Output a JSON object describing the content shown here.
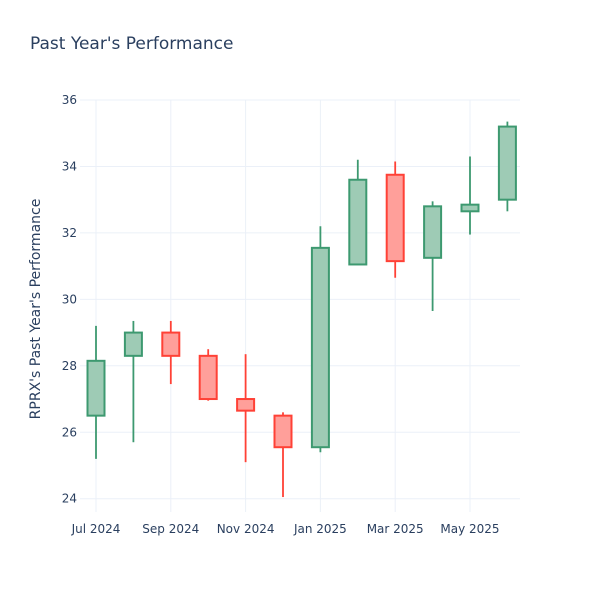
{
  "chart_data": {
    "type": "candlestick",
    "title": "Past Year's Performance",
    "xlabel": "",
    "ylabel": "RPRX's Past Year's Performance",
    "ylim": [
      23.6,
      36
    ],
    "yticks": [
      24,
      26,
      28,
      30,
      32,
      34,
      36
    ],
    "xticks": [
      "Jul 2024",
      "Sep 2024",
      "Nov 2024",
      "Jan 2025",
      "Mar 2025",
      "May 2025"
    ],
    "grid": true,
    "colors": {
      "increasing": "#3d9970",
      "decreasing": "#ff4136",
      "increasing_fill": "#9ecbb5",
      "decreasing_fill": "#ff9f9a"
    },
    "candles": [
      {
        "date": "2024-07",
        "open": 26.5,
        "high": 29.2,
        "low": 25.2,
        "close": 28.15
      },
      {
        "date": "2024-08",
        "open": 28.3,
        "high": 29.35,
        "low": 25.7,
        "close": 29.0
      },
      {
        "date": "2024-09",
        "open": 29.0,
        "high": 29.35,
        "low": 27.45,
        "close": 28.3
      },
      {
        "date": "2024-10",
        "open": 28.3,
        "high": 28.5,
        "low": 26.95,
        "close": 27.0
      },
      {
        "date": "2024-11",
        "open": 27.0,
        "high": 28.35,
        "low": 25.1,
        "close": 26.65
      },
      {
        "date": "2024-12",
        "open": 26.5,
        "high": 26.6,
        "low": 24.05,
        "close": 25.55
      },
      {
        "date": "2025-01",
        "open": 25.55,
        "high": 32.2,
        "low": 25.4,
        "close": 31.55
      },
      {
        "date": "2025-02",
        "open": 31.05,
        "high": 34.2,
        "low": 31.05,
        "close": 33.6
      },
      {
        "date": "2025-03",
        "open": 33.75,
        "high": 34.15,
        "low": 30.65,
        "close": 31.15
      },
      {
        "date": "2025-04",
        "open": 31.25,
        "high": 32.95,
        "low": 29.65,
        "close": 32.8
      },
      {
        "date": "2025-05",
        "open": 32.65,
        "high": 34.3,
        "low": 31.95,
        "close": 32.85
      },
      {
        "date": "2025-06",
        "open": 33.0,
        "high": 35.35,
        "low": 32.65,
        "close": 35.2
      }
    ]
  }
}
